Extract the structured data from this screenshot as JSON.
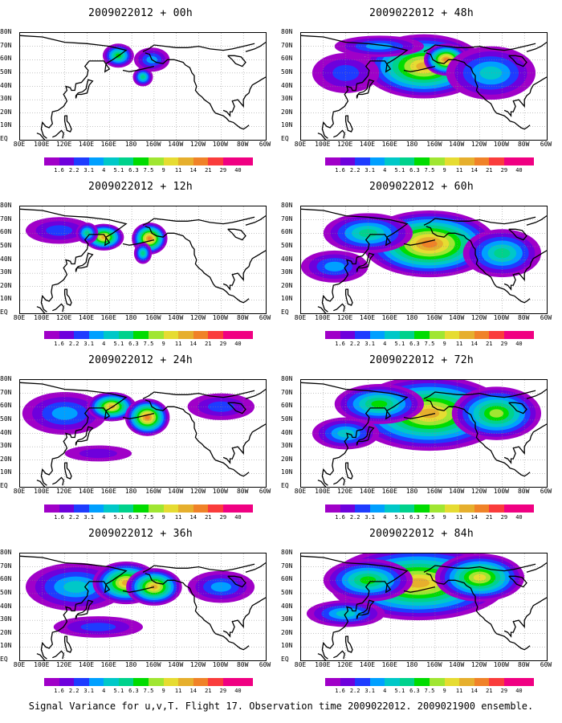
{
  "panels": [
    {
      "title": "2009022012 + 00h",
      "coverage": 0.1
    },
    {
      "title": "2009022012 + 12h",
      "coverage": 0.35
    },
    {
      "title": "2009022012 + 24h",
      "coverage": 0.55
    },
    {
      "title": "2009022012 + 36h",
      "coverage": 0.7
    },
    {
      "title": "2009022012 + 48h",
      "coverage": 0.8
    },
    {
      "title": "2009022012 + 60h",
      "coverage": 0.85
    },
    {
      "title": "2009022012 + 72h",
      "coverage": 0.9
    },
    {
      "title": "2009022012 + 84h",
      "coverage": 0.92
    }
  ],
  "lat_labels": [
    "80N",
    "70N",
    "60N",
    "50N",
    "40N",
    "30N",
    "20N",
    "10N",
    "EQ"
  ],
  "lon_labels": [
    "80E",
    "100E",
    "120E",
    "140E",
    "160E",
    "180",
    "160W",
    "140W",
    "120W",
    "100W",
    "80W",
    "60W"
  ],
  "legend": {
    "labels": [
      "1.6",
      "2.2",
      "3.1",
      "4",
      "5.1",
      "6.3",
      "7.5",
      "9",
      "11",
      "14",
      "21",
      "29",
      "40"
    ],
    "colors": [
      "#a000c8",
      "#6e00dc",
      "#1e3cff",
      "#00a0ff",
      "#00c8c8",
      "#00d28c",
      "#00dc00",
      "#a0e632",
      "#e6dc32",
      "#e6af2d",
      "#f08228",
      "#fa3c3c",
      "#f00082"
    ]
  },
  "caption": "Signal Variance for u,v,T. Flight 17. Observation time 2009022012. 2009021900 ensemble."
}
